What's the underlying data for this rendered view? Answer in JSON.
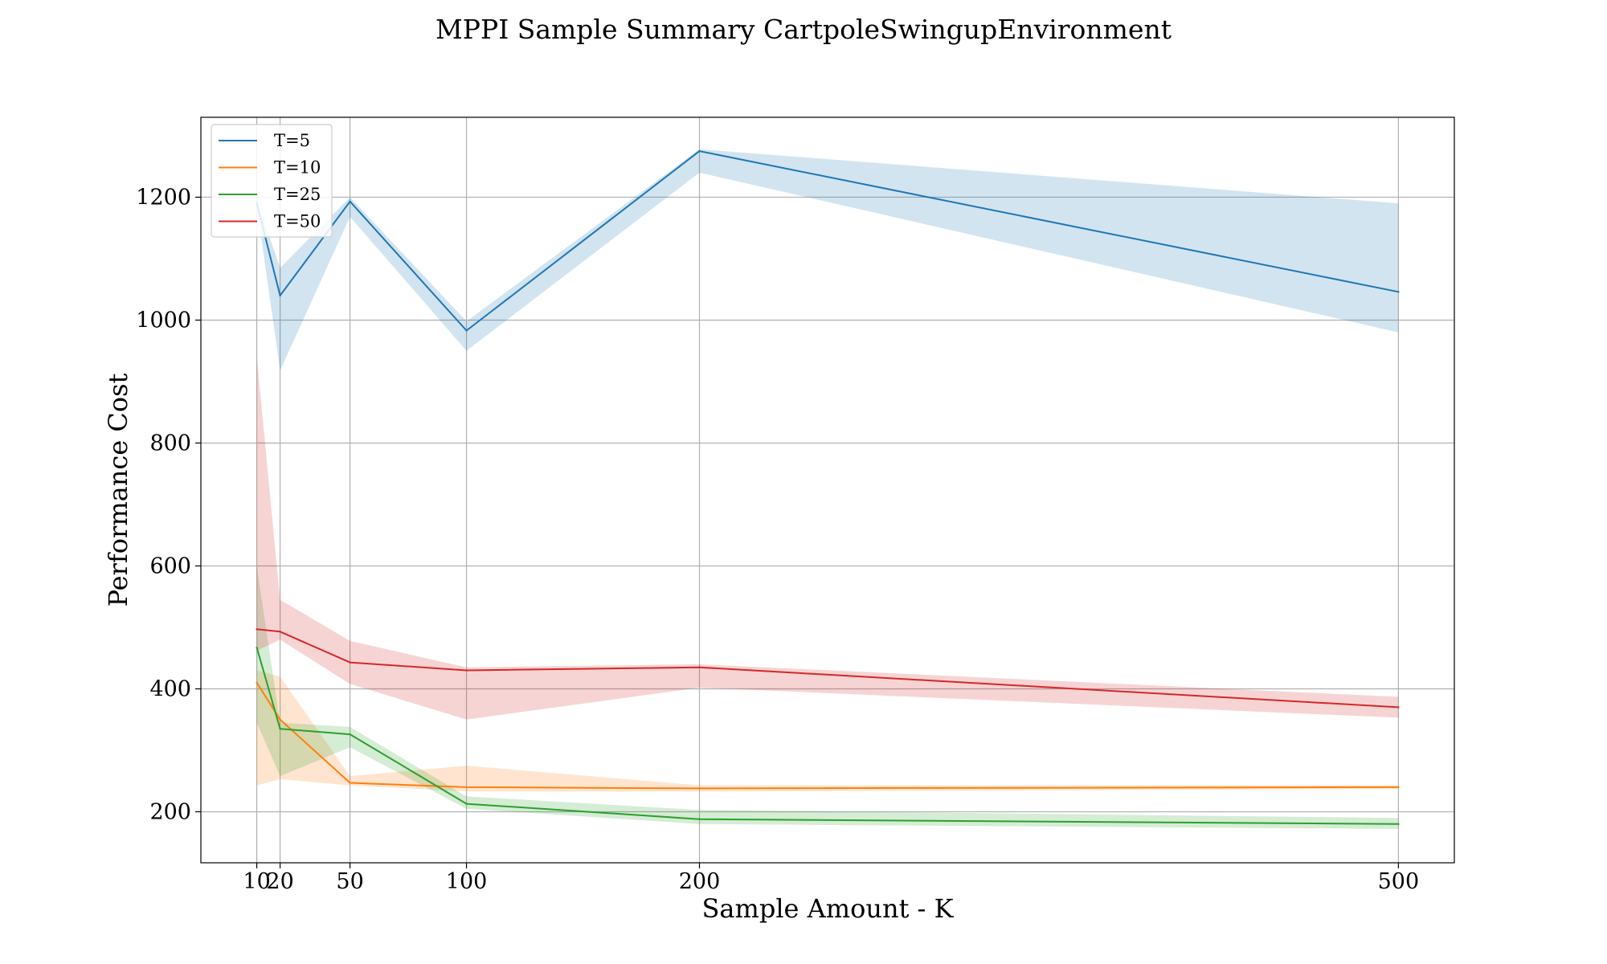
{
  "chart_data": {
    "type": "line",
    "title": "MPPI Sample Summary CartpoleSwingupEnvironment",
    "xlabel": "Sample Amount - K",
    "ylabel": "Performance Cost",
    "x": [
      10,
      20,
      50,
      100,
      200,
      500
    ],
    "x_ticks": [
      "10",
      "20",
      "50",
      "100",
      "200",
      "500"
    ],
    "y_ticks": [
      "200",
      "400",
      "600",
      "800",
      "1000",
      "1200"
    ],
    "xlim": [
      -14,
      524
    ],
    "ylim": [
      117,
      1330
    ],
    "grid": true,
    "legend_position": "upper left",
    "shaded_bands": true,
    "series": [
      {
        "name": "T=5",
        "color": "#1f77b4",
        "values": [
          1190,
          1040,
          1193,
          983,
          1275,
          1046
        ],
        "lower": [
          1185,
          918,
          1168,
          950,
          1240,
          980
        ],
        "upper": [
          1196,
          1085,
          1200,
          998,
          1278,
          1190
        ]
      },
      {
        "name": "T=10",
        "color": "#ff7f0e",
        "values": [
          410,
          350,
          247,
          240,
          238,
          240
        ],
        "lower": [
          243,
          253,
          243,
          233,
          233,
          237
        ],
        "upper": [
          430,
          420,
          258,
          275,
          243,
          243
        ]
      },
      {
        "name": "T=25",
        "color": "#2ca02c",
        "values": [
          467,
          335,
          326,
          213,
          188,
          180
        ],
        "lower": [
          345,
          258,
          305,
          205,
          180,
          172
        ],
        "upper": [
          600,
          345,
          338,
          225,
          203,
          190
        ]
      },
      {
        "name": "T=50",
        "color": "#d62728",
        "values": [
          497,
          493,
          443,
          430,
          435,
          370
        ],
        "lower": [
          462,
          480,
          408,
          350,
          402,
          353
        ],
        "upper": [
          940,
          545,
          478,
          435,
          440,
          387
        ]
      }
    ]
  }
}
